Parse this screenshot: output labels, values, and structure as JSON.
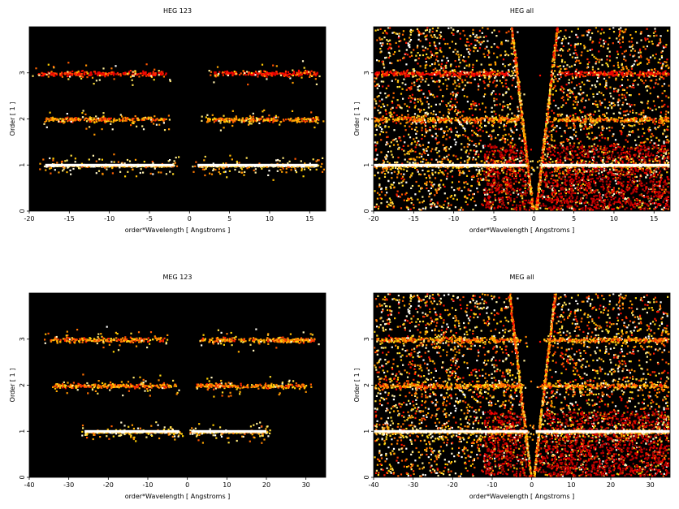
{
  "chart_data": [
    {
      "type": "heatmap",
      "title": "HEG 123",
      "xlabel": "order*Wavelength [ Angstroms ]",
      "ylabel": "Order [ 1 ]",
      "xlim": [
        -20,
        17
      ],
      "ylim": [
        0,
        4
      ],
      "xticks": [
        -20,
        -15,
        -10,
        -5,
        0,
        5,
        10,
        15
      ],
      "yticks": [
        0,
        1,
        2,
        3
      ],
      "colormap": "black-red-yellow-white",
      "background": "#000000",
      "bands": [
        {
          "order": 1,
          "x_ranges": [
            [
              -18,
              -2
            ],
            [
              1,
              16
            ]
          ],
          "intensity": "high"
        },
        {
          "order": 2,
          "x_ranges": [
            [
              -18,
              -3
            ],
            [
              2,
              16
            ]
          ],
          "intensity": "medium"
        },
        {
          "order": 3,
          "x_ranges": [
            [
              -19,
              -3
            ],
            [
              3,
              16
            ]
          ],
          "intensity": "low"
        }
      ]
    },
    {
      "type": "heatmap",
      "title": "HEG all",
      "xlabel": "order*Wavelength [ Angstroms ]",
      "ylabel": "Order [ 1 ]",
      "xlim": [
        -20,
        17
      ],
      "ylim": [
        0,
        4
      ],
      "xticks": [
        -20,
        -15,
        -10,
        -5,
        0,
        5,
        10,
        15
      ],
      "yticks": [
        0,
        1,
        2,
        3
      ],
      "colormap": "black-red-yellow-white",
      "background": "#000000",
      "bands": [
        {
          "order": 1,
          "x_ranges": [
            [
              -20,
              -1
            ],
            [
              1,
              17
            ]
          ],
          "intensity": "high"
        },
        {
          "order": 2,
          "x_ranges": [
            [
              -20,
              -2
            ],
            [
              2,
              17
            ]
          ],
          "intensity": "medium"
        },
        {
          "order": 3,
          "x_ranges": [
            [
              -20,
              -3
            ],
            [
              3,
              17
            ]
          ],
          "intensity": "low"
        }
      ]
    },
    {
      "type": "heatmap",
      "title": "MEG 123",
      "xlabel": "order*Wavelength [ Angstroms ]",
      "ylabel": "Order [ 1 ]",
      "xlim": [
        -40,
        35
      ],
      "ylim": [
        0,
        4
      ],
      "xticks": [
        -40,
        -30,
        -20,
        -10,
        0,
        10,
        20,
        30
      ],
      "yticks": [
        0,
        1,
        2,
        3
      ],
      "colormap": "black-red-yellow-white",
      "background": "#000000",
      "bands": [
        {
          "order": 1,
          "x_ranges": [
            [
              -26,
              -2
            ],
            [
              1,
              20
            ]
          ],
          "intensity": "high"
        },
        {
          "order": 2,
          "x_ranges": [
            [
              -34,
              -3
            ],
            [
              2,
              30
            ]
          ],
          "intensity": "medium"
        },
        {
          "order": 3,
          "x_ranges": [
            [
              -35,
              -6
            ],
            [
              3,
              32
            ]
          ],
          "intensity": "medium"
        }
      ]
    },
    {
      "type": "heatmap",
      "title": "MEG all",
      "xlabel": "order*Wavelength [ Angstroms ]",
      "ylabel": "Order [ 1 ]",
      "xlim": [
        -40,
        35
      ],
      "ylim": [
        0,
        4
      ],
      "xticks": [
        -40,
        -30,
        -20,
        -10,
        0,
        10,
        20,
        30
      ],
      "yticks": [
        0,
        1,
        2,
        3
      ],
      "colormap": "black-red-yellow-white",
      "background": "#000000",
      "bands": [
        {
          "order": 1,
          "x_ranges": [
            [
              -40,
              -1
            ],
            [
              1,
              35
            ]
          ],
          "intensity": "high"
        },
        {
          "order": 2,
          "x_ranges": [
            [
              -40,
              -2
            ],
            [
              2,
              35
            ]
          ],
          "intensity": "medium"
        },
        {
          "order": 3,
          "x_ranges": [
            [
              -40,
              -3
            ],
            [
              3,
              35
            ]
          ],
          "intensity": "medium"
        }
      ]
    }
  ]
}
